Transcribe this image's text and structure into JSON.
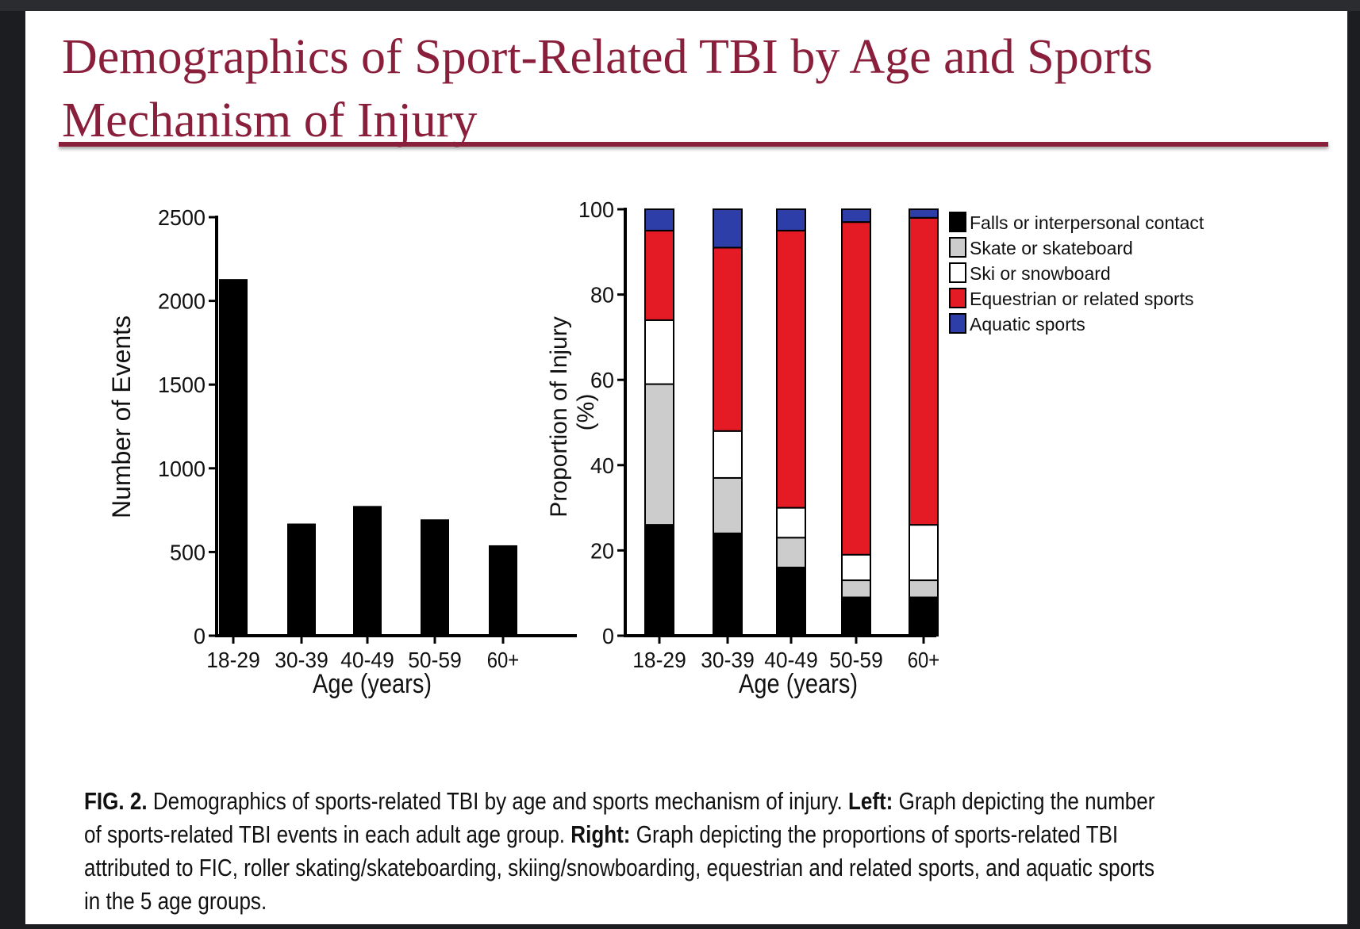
{
  "slide": {
    "title": "Demographics of Sport-Related TBI by Age and Sports Mechanism of Injury",
    "caption": {
      "fig_label": "FIG. 2.",
      "text1": " Demographics of sports-related TBI by age and sports mechanism of injury.  ",
      "left_label": "Left:",
      "text2": " Graph depicting the number of sports-related TBI events in each adult age group.  ",
      "right_label": "Right:",
      "text3": " Graph depicting the proportions of sports-related TBI attributed to FIC, roller skating/skateboarding, skiing/snowboarding, equestrian and related sports, and aquatic sports in the 5 age groups."
    }
  },
  "chart_data": [
    {
      "type": "bar",
      "categories": [
        "18-29",
        "30-39",
        "40-49",
        "50-59",
        "60+"
      ],
      "values": [
        2130,
        670,
        775,
        695,
        540
      ],
      "xlabel": "Age (years)",
      "ylabel": "Number of Events",
      "ylim": [
        0,
        2500
      ],
      "yticks": [
        0,
        500,
        1000,
        1500,
        2000,
        2500
      ],
      "color": "#000000",
      "grid": false
    },
    {
      "type": "bar",
      "stacked": true,
      "categories": [
        "18-29",
        "30-39",
        "40-49",
        "50-59",
        "60+"
      ],
      "series": [
        {
          "name": "Falls or interpersonal contact",
          "color": "#000000",
          "values": [
            26,
            24,
            16,
            9,
            9
          ]
        },
        {
          "name": "Skate or skateboard",
          "color": "#cccccc",
          "values": [
            33,
            13,
            7,
            4,
            4
          ]
        },
        {
          "name": "Ski or snowboard",
          "color": "#ffffff",
          "values": [
            15,
            11,
            7,
            6,
            13
          ]
        },
        {
          "name": "Equestrian or related sports",
          "color": "#e41a24",
          "values": [
            21,
            43,
            65,
            78,
            72
          ]
        },
        {
          "name": "Aquatic sports",
          "color": "#2d3ea8",
          "values": [
            5,
            9,
            5,
            3,
            2
          ]
        }
      ],
      "xlabel": "Age (years)",
      "ylabel": [
        "Proportion of Injury",
        "(%)"
      ],
      "ylim": [
        0,
        100
      ],
      "yticks": [
        0,
        20,
        40,
        60,
        80,
        100
      ],
      "legend": "right",
      "grid": false
    }
  ]
}
